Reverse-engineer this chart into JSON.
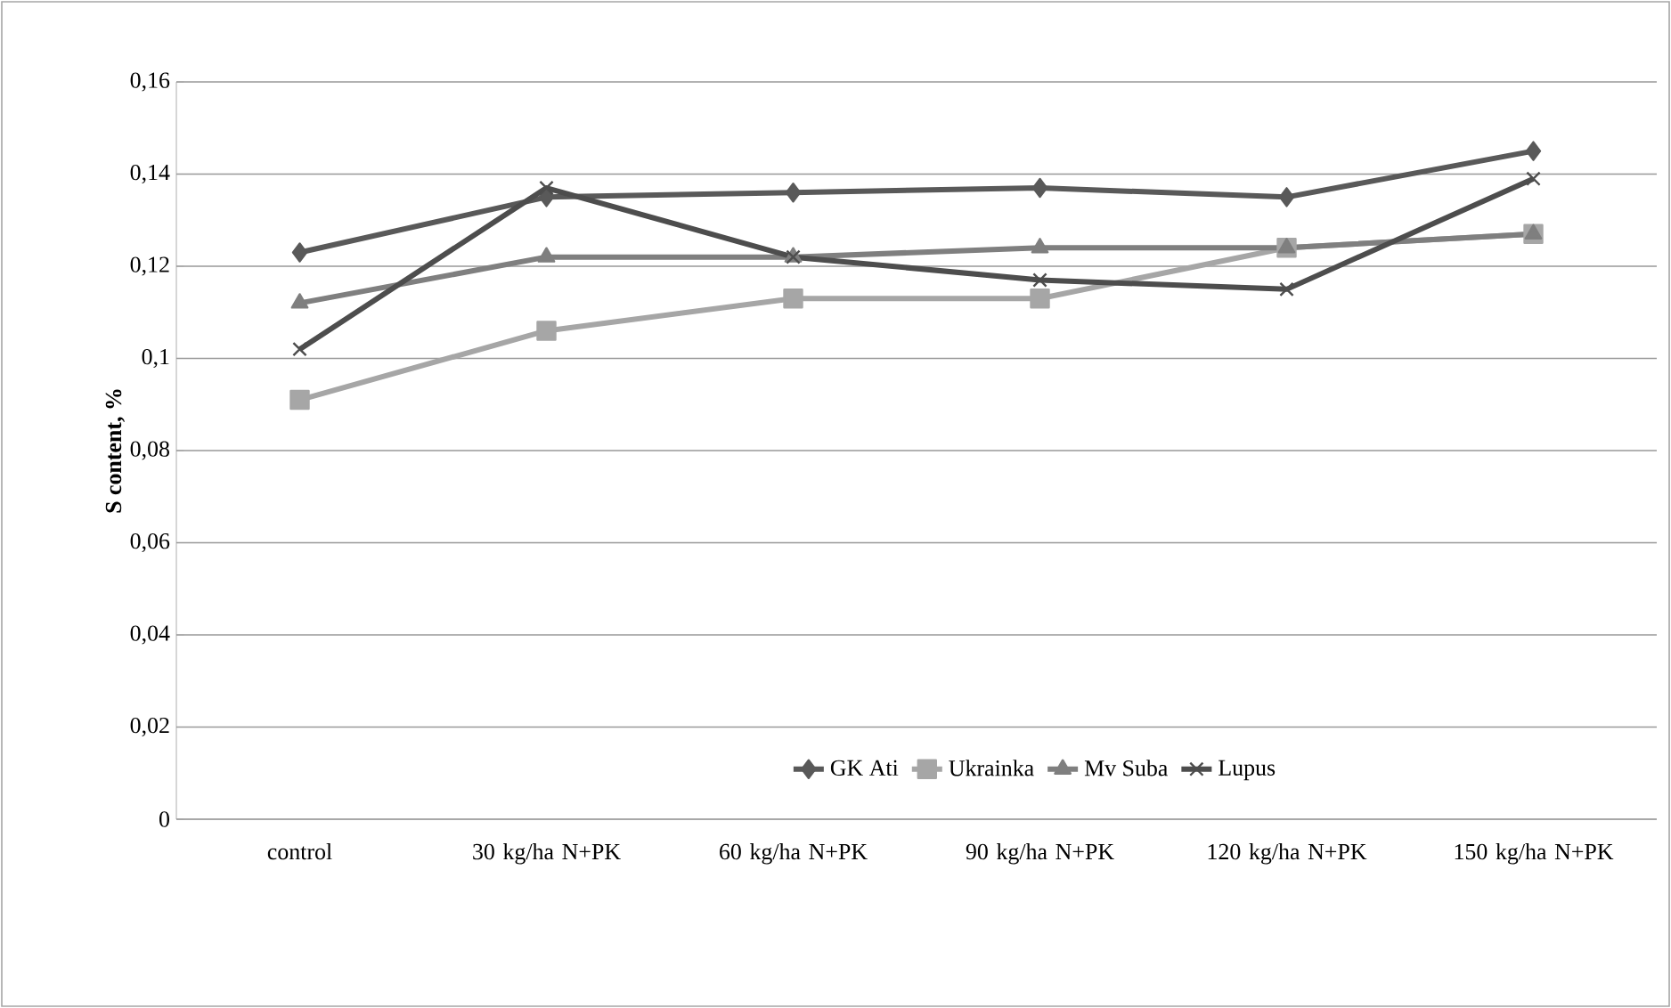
{
  "chart_data": {
    "type": "line",
    "ylabel": "S content, %",
    "categories": [
      "control",
      "30 kg/ha N+PK",
      "60 kg/ha N+PK",
      "90 kg/ha N+PK",
      "120 kg/ha N+PK",
      "150 kg/ha N+PK"
    ],
    "series": [
      {
        "name": "GK Ati",
        "color": "#595959",
        "marker": "diamond",
        "values": [
          0.123,
          0.135,
          0.136,
          0.137,
          0.135,
          0.145
        ]
      },
      {
        "name": "Ukrainka",
        "color": "#a6a6a6",
        "marker": "square",
        "values": [
          0.091,
          0.106,
          0.113,
          0.113,
          0.124,
          0.127
        ]
      },
      {
        "name": "Mv Suba",
        "color": "#7f7f7f",
        "marker": "triangle",
        "values": [
          0.112,
          0.122,
          0.122,
          0.124,
          0.124,
          0.127
        ]
      },
      {
        "name": "Lupus",
        "color": "#4d4d4d",
        "marker": "cross",
        "values": [
          0.102,
          0.137,
          0.122,
          0.117,
          0.115,
          0.139
        ]
      }
    ],
    "ylim": [
      0,
      0.16
    ],
    "yticks": [
      0,
      {
        "value": 0.02,
        "label": "0,02"
      },
      {
        "value": 0.04,
        "label": "0,04"
      },
      {
        "value": 0.06,
        "label": "0,06"
      },
      {
        "value": 0.08,
        "label": "0,08"
      },
      {
        "value": 0.1,
        "label": "0,1"
      },
      {
        "value": 0.12,
        "label": "0,12"
      },
      {
        "value": 0.14,
        "label": "0,14"
      },
      {
        "value": 0.16,
        "label": "0,16"
      }
    ],
    "grid": "y",
    "legend": "bottom right",
    "line_style": "solid"
  }
}
